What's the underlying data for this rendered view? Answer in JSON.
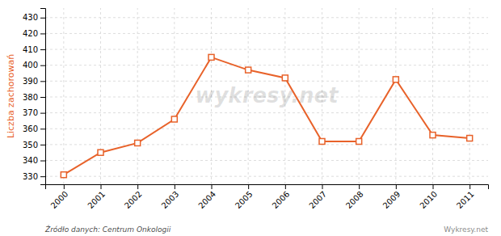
{
  "chart_data": {
    "type": "line",
    "x": [
      2000,
      2001,
      2002,
      2003,
      2004,
      2005,
      2006,
      2007,
      2008,
      2009,
      2010,
      2011
    ],
    "values": [
      331,
      345,
      351,
      366,
      405,
      397,
      392,
      352,
      352,
      391,
      356,
      354
    ],
    "color": "#e8622a",
    "marker": "square",
    "ylabel": "Liczba zachorowań",
    "xlim": [
      1999.5,
      2011.5
    ],
    "xticks": [
      2000,
      2001,
      2002,
      2003,
      2004,
      2005,
      2006,
      2007,
      2008,
      2009,
      2010,
      2011
    ],
    "ylim": [
      325,
      436
    ],
    "yticks": [
      330,
      340,
      350,
      360,
      370,
      380,
      390,
      400,
      410,
      420,
      430
    ],
    "grid": true,
    "annotations": [
      "wykresy.net",
      "Źródło danych:  Centrum Onkologii",
      "Wykresy.net"
    ]
  }
}
